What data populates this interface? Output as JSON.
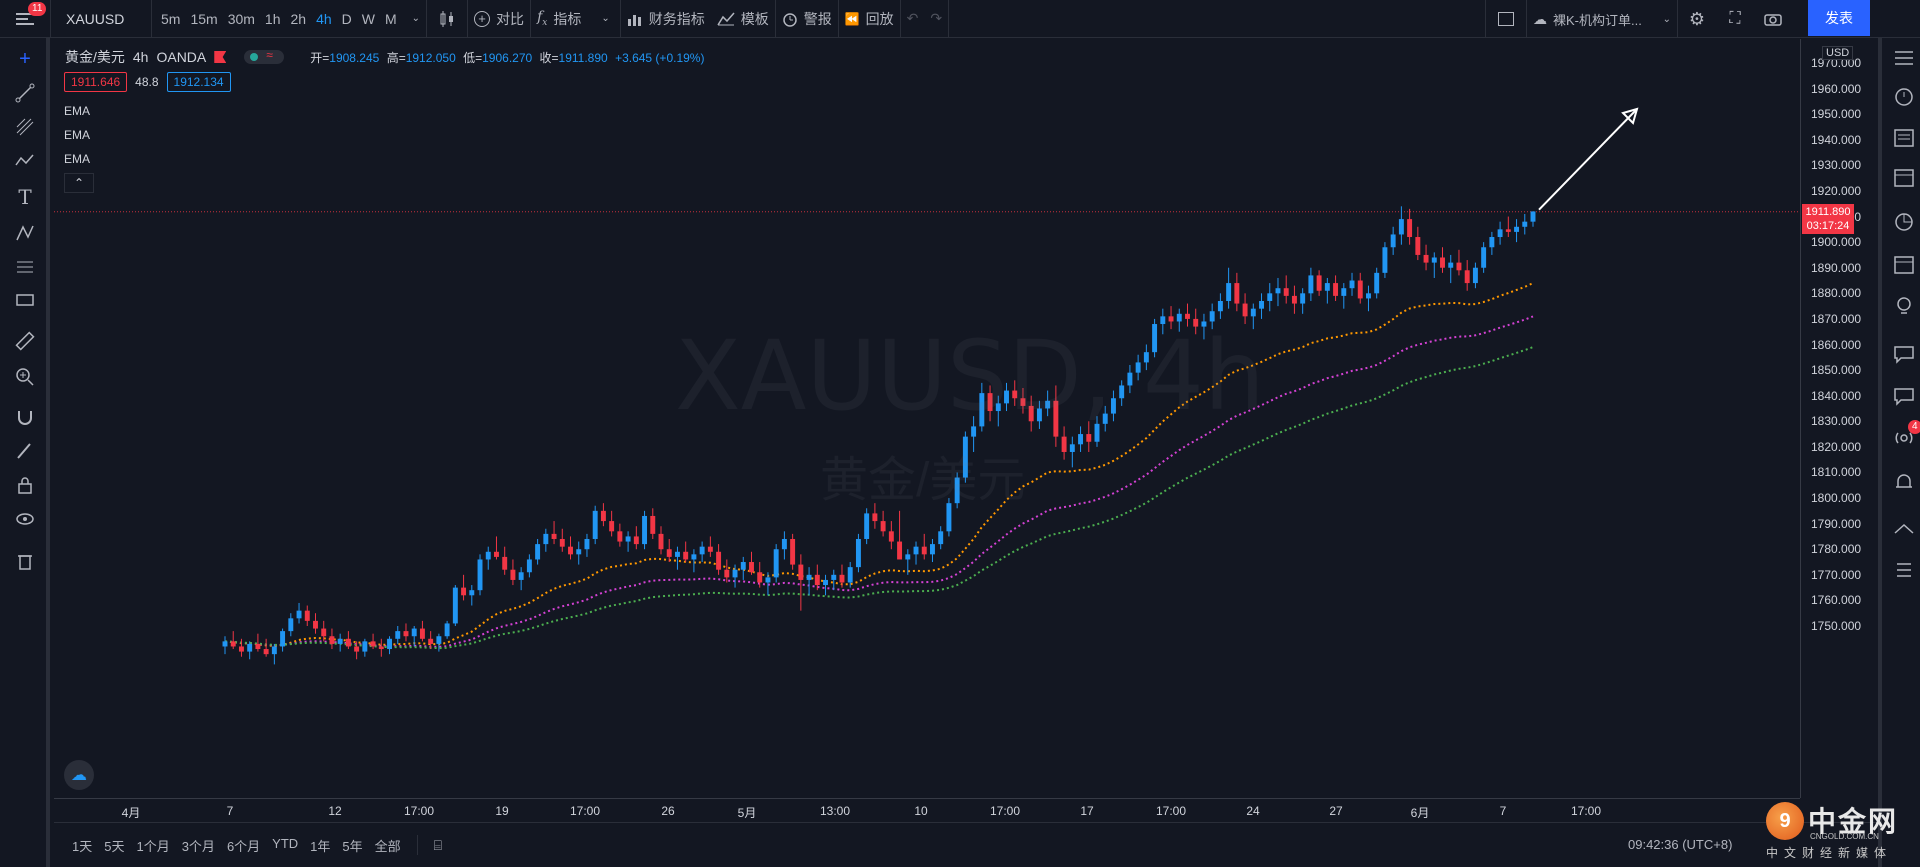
{
  "topbar": {
    "menu_badge": "11",
    "symbol": "XAUUSD",
    "intervals": [
      "5m",
      "15m",
      "30m",
      "1h",
      "2h",
      "4h",
      "D",
      "W",
      "M"
    ],
    "active_interval": "4h",
    "compare_label": "对比",
    "indicators_label": "指标",
    "financials_label": "财务指标",
    "templates_label": "模板",
    "alert_label": "警报",
    "replay_label": "回放",
    "layout_name": "裸K-机构订单...",
    "publish_label": "发表"
  },
  "legend": {
    "symbol_name": "黄金/美元",
    "interval": "4h",
    "broker": "OANDA",
    "open_label": "开=",
    "open": "1908.245",
    "high_label": "高=",
    "high": "1912.050",
    "low_label": "低=",
    "low": "1906.270",
    "close_label": "收=",
    "close": "1911.890",
    "change": "+3.645 (+0.19%)",
    "bid": "1911.646",
    "spread": "48.8",
    "ask": "1912.134",
    "ema1": "EMA",
    "ema2": "EMA",
    "ema3": "EMA"
  },
  "watermark": {
    "line1": "XAUUSD, 4h",
    "line2": "黄金/美元"
  },
  "price_axis": {
    "currency": "USD",
    "ticks": [
      "1970.000",
      "1960.000",
      "1950.000",
      "1940.000",
      "1930.000",
      "1920.000",
      "1910.000",
      "1900.000",
      "1890.000",
      "1880.000",
      "1870.000",
      "1860.000",
      "1850.000",
      "1840.000",
      "1830.000",
      "1820.000",
      "1810.000",
      "1800.000",
      "1790.000",
      "1780.000",
      "1770.000",
      "1760.000",
      "1750.000"
    ],
    "current_price": "1911.890",
    "countdown": "03:17:24"
  },
  "time_axis": {
    "labels": [
      "4月",
      "7",
      "12",
      "17:00",
      "19",
      "17:00",
      "26",
      "5月",
      "13:00",
      "10",
      "17:00",
      "17",
      "17:00",
      "24",
      "27",
      "6月",
      "7",
      "17:00"
    ]
  },
  "bottombar": {
    "ranges": [
      "1天",
      "5天",
      "1个月",
      "3个月",
      "6个月",
      "YTD",
      "1年",
      "5年",
      "全部"
    ],
    "clock": "09:42:36 (UTC+8)"
  },
  "logo": {
    "name": "中金网",
    "site": "CNGOLD.COM.CN",
    "tagline": "中文财经新媒体"
  },
  "colors": {
    "up": "#2196f3",
    "down": "#f23645",
    "ema_fast": "#ff9800",
    "ema_mid": "#d442d4",
    "ema_slow": "#4caf50",
    "background": "#131722",
    "accent": "#2962ff"
  },
  "chart_data": {
    "type": "candlestick",
    "symbol": "XAUUSD",
    "interval": "4h",
    "ylim": [
      1745,
      1982
    ],
    "candles_ohlc": [
      [
        1742,
        1746,
        1739,
        1744
      ],
      [
        1744,
        1748,
        1741,
        1742
      ],
      [
        1742,
        1745,
        1738,
        1740
      ],
      [
        1740,
        1744,
        1737,
        1743
      ],
      [
        1743,
        1747,
        1740,
        1741
      ],
      [
        1741,
        1745,
        1738,
        1739
      ],
      [
        1739,
        1743,
        1735,
        1742
      ],
      [
        1742,
        1749,
        1740,
        1748
      ],
      [
        1748,
        1755,
        1746,
        1753
      ],
      [
        1753,
        1759,
        1751,
        1756
      ],
      [
        1756,
        1758,
        1750,
        1752
      ],
      [
        1752,
        1755,
        1747,
        1749
      ],
      [
        1749,
        1752,
        1744,
        1746
      ],
      [
        1746,
        1749,
        1741,
        1743
      ],
      [
        1743,
        1747,
        1740,
        1745
      ],
      [
        1745,
        1748,
        1741,
        1742
      ],
      [
        1742,
        1744,
        1737,
        1740
      ],
      [
        1740,
        1745,
        1738,
        1744
      ],
      [
        1744,
        1747,
        1741,
        1742
      ],
      [
        1742,
        1745,
        1738,
        1741
      ],
      [
        1741,
        1746,
        1739,
        1745
      ],
      [
        1745,
        1750,
        1743,
        1748
      ],
      [
        1748,
        1751,
        1744,
        1746
      ],
      [
        1746,
        1750,
        1742,
        1749
      ],
      [
        1749,
        1752,
        1744,
        1745
      ],
      [
        1745,
        1748,
        1741,
        1743
      ],
      [
        1743,
        1747,
        1740,
        1746
      ],
      [
        1746,
        1752,
        1745,
        1751
      ],
      [
        1751,
        1766,
        1750,
        1765
      ],
      [
        1765,
        1770,
        1760,
        1762
      ],
      [
        1762,
        1766,
        1758,
        1764
      ],
      [
        1764,
        1778,
        1762,
        1776
      ],
      [
        1776,
        1781,
        1772,
        1779
      ],
      [
        1779,
        1785,
        1776,
        1777
      ],
      [
        1777,
        1781,
        1770,
        1772
      ],
      [
        1772,
        1776,
        1766,
        1768
      ],
      [
        1768,
        1773,
        1764,
        1771
      ],
      [
        1771,
        1778,
        1769,
        1776
      ],
      [
        1776,
        1784,
        1774,
        1782
      ],
      [
        1782,
        1788,
        1779,
        1786
      ],
      [
        1786,
        1791,
        1782,
        1784
      ],
      [
        1784,
        1788,
        1779,
        1781
      ],
      [
        1781,
        1785,
        1776,
        1778
      ],
      [
        1778,
        1783,
        1774,
        1780
      ],
      [
        1780,
        1786,
        1777,
        1784
      ],
      [
        1784,
        1797,
        1782,
        1795
      ],
      [
        1795,
        1798,
        1789,
        1791
      ],
      [
        1791,
        1795,
        1785,
        1787
      ],
      [
        1787,
        1790,
        1781,
        1783
      ],
      [
        1783,
        1787,
        1779,
        1785
      ],
      [
        1785,
        1789,
        1780,
        1782
      ],
      [
        1782,
        1795,
        1780,
        1793
      ],
      [
        1793,
        1796,
        1784,
        1786
      ],
      [
        1786,
        1789,
        1778,
        1780
      ],
      [
        1780,
        1784,
        1775,
        1777
      ],
      [
        1777,
        1781,
        1772,
        1779
      ],
      [
        1779,
        1783,
        1775,
        1776
      ],
      [
        1776,
        1780,
        1771,
        1778
      ],
      [
        1778,
        1783,
        1775,
        1781
      ],
      [
        1781,
        1785,
        1777,
        1779
      ],
      [
        1779,
        1782,
        1770,
        1772
      ],
      [
        1772,
        1776,
        1767,
        1769
      ],
      [
        1769,
        1774,
        1765,
        1772
      ],
      [
        1772,
        1777,
        1768,
        1775
      ],
      [
        1775,
        1779,
        1770,
        1771
      ],
      [
        1771,
        1775,
        1765,
        1767
      ],
      [
        1767,
        1771,
        1762,
        1769
      ],
      [
        1769,
        1782,
        1767,
        1780
      ],
      [
        1780,
        1787,
        1776,
        1784
      ],
      [
        1784,
        1786,
        1772,
        1774
      ],
      [
        1774,
        1778,
        1756,
        1768
      ],
      [
        1768,
        1773,
        1762,
        1770
      ],
      [
        1770,
        1774,
        1764,
        1766
      ],
      [
        1766,
        1770,
        1762,
        1768
      ],
      [
        1768,
        1772,
        1764,
        1770
      ],
      [
        1770,
        1774,
        1765,
        1767
      ],
      [
        1767,
        1775,
        1765,
        1773
      ],
      [
        1773,
        1786,
        1771,
        1784
      ],
      [
        1784,
        1796,
        1782,
        1794
      ],
      [
        1794,
        1798,
        1788,
        1791
      ],
      [
        1791,
        1795,
        1785,
        1787
      ],
      [
        1787,
        1791,
        1780,
        1783
      ],
      [
        1783,
        1795,
        1781,
        1776
      ],
      [
        1776,
        1780,
        1770,
        1778
      ],
      [
        1778,
        1783,
        1774,
        1781
      ],
      [
        1781,
        1786,
        1776,
        1778
      ],
      [
        1778,
        1784,
        1775,
        1782
      ],
      [
        1782,
        1789,
        1780,
        1787
      ],
      [
        1787,
        1800,
        1785,
        1798
      ],
      [
        1798,
        1810,
        1796,
        1808
      ],
      [
        1808,
        1826,
        1806,
        1824
      ],
      [
        1824,
        1832,
        1818,
        1828
      ],
      [
        1828,
        1845,
        1826,
        1841
      ],
      [
        1841,
        1844,
        1830,
        1834
      ],
      [
        1834,
        1840,
        1828,
        1837
      ],
      [
        1837,
        1845,
        1834,
        1842
      ],
      [
        1842,
        1846,
        1836,
        1839
      ],
      [
        1839,
        1843,
        1833,
        1836
      ],
      [
        1836,
        1840,
        1826,
        1830
      ],
      [
        1830,
        1838,
        1827,
        1835
      ],
      [
        1835,
        1842,
        1832,
        1838
      ],
      [
        1838,
        1844,
        1820,
        1824
      ],
      [
        1824,
        1828,
        1815,
        1818
      ],
      [
        1818,
        1824,
        1812,
        1821
      ],
      [
        1821,
        1828,
        1818,
        1825
      ],
      [
        1825,
        1830,
        1818,
        1822
      ],
      [
        1822,
        1832,
        1820,
        1829
      ],
      [
        1829,
        1836,
        1826,
        1833
      ],
      [
        1833,
        1842,
        1830,
        1839
      ],
      [
        1839,
        1846,
        1836,
        1844
      ],
      [
        1844,
        1852,
        1841,
        1849
      ],
      [
        1849,
        1856,
        1846,
        1853
      ],
      [
        1853,
        1860,
        1850,
        1857
      ],
      [
        1857,
        1870,
        1855,
        1868
      ],
      [
        1868,
        1874,
        1864,
        1871
      ],
      [
        1871,
        1875,
        1866,
        1869
      ],
      [
        1869,
        1874,
        1865,
        1872
      ],
      [
        1872,
        1876,
        1867,
        1870
      ],
      [
        1870,
        1874,
        1864,
        1867
      ],
      [
        1867,
        1872,
        1862,
        1869
      ],
      [
        1869,
        1876,
        1866,
        1873
      ],
      [
        1873,
        1880,
        1870,
        1877
      ],
      [
        1877,
        1890,
        1874,
        1884
      ],
      [
        1884,
        1888,
        1873,
        1876
      ],
      [
        1876,
        1880,
        1868,
        1871
      ],
      [
        1871,
        1876,
        1866,
        1874
      ],
      [
        1874,
        1880,
        1870,
        1877
      ],
      [
        1877,
        1884,
        1873,
        1880
      ],
      [
        1880,
        1886,
        1875,
        1882
      ],
      [
        1882,
        1887,
        1876,
        1879
      ],
      [
        1879,
        1883,
        1872,
        1876
      ],
      [
        1876,
        1882,
        1872,
        1880
      ],
      [
        1880,
        1890,
        1877,
        1887
      ],
      [
        1887,
        1889,
        1879,
        1881
      ],
      [
        1881,
        1886,
        1876,
        1884
      ],
      [
        1884,
        1887,
        1877,
        1879
      ],
      [
        1879,
        1884,
        1874,
        1882
      ],
      [
        1882,
        1888,
        1879,
        1885
      ],
      [
        1885,
        1888,
        1876,
        1878
      ],
      [
        1878,
        1883,
        1873,
        1880
      ],
      [
        1880,
        1890,
        1878,
        1888
      ],
      [
        1888,
        1900,
        1886,
        1898
      ],
      [
        1898,
        1906,
        1895,
        1903
      ],
      [
        1903,
        1914,
        1899,
        1909
      ],
      [
        1909,
        1913,
        1899,
        1902
      ],
      [
        1902,
        1906,
        1893,
        1895
      ],
      [
        1895,
        1899,
        1889,
        1892
      ],
      [
        1892,
        1896,
        1886,
        1894
      ],
      [
        1894,
        1898,
        1888,
        1890
      ],
      [
        1890,
        1895,
        1884,
        1892
      ],
      [
        1892,
        1897,
        1887,
        1889
      ],
      [
        1889,
        1893,
        1881,
        1884
      ],
      [
        1884,
        1892,
        1882,
        1890
      ],
      [
        1890,
        1900,
        1888,
        1898
      ],
      [
        1898,
        1904,
        1895,
        1902
      ],
      [
        1902,
        1908,
        1899,
        1905
      ],
      [
        1905,
        1910,
        1902,
        1904
      ],
      [
        1904,
        1909,
        1900,
        1906
      ],
      [
        1906,
        1911,
        1903,
        1908
      ],
      [
        1908,
        1912,
        1906,
        1912
      ]
    ],
    "ema_fast_end": 1884,
    "ema_mid_end": 1871,
    "ema_slow_end": 1859,
    "current_price": 1911.89
  }
}
